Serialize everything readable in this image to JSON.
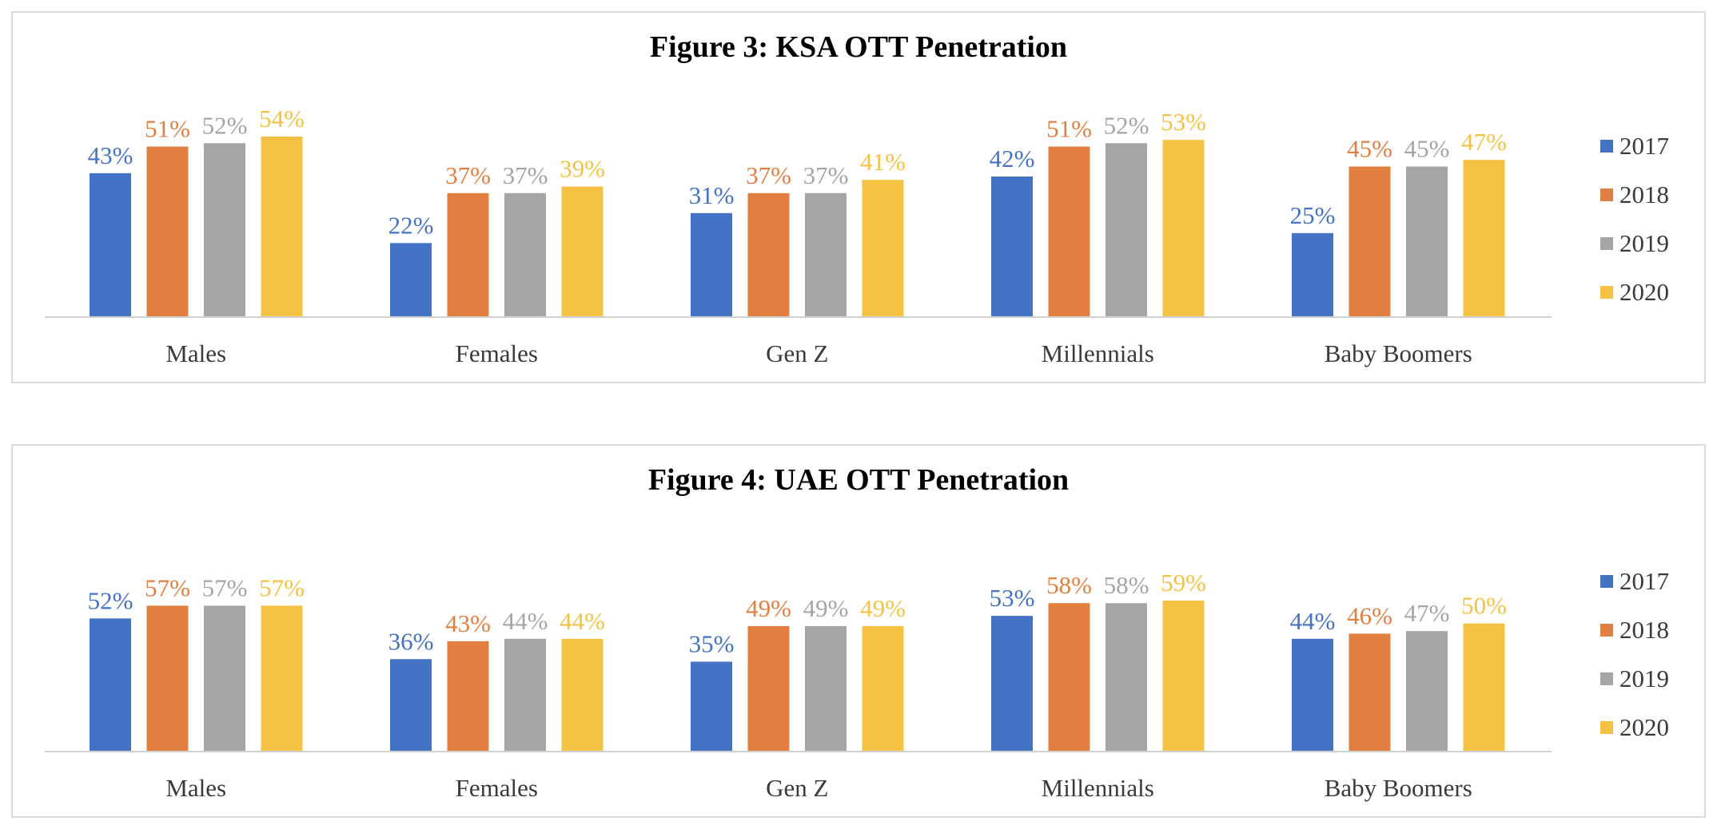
{
  "chart_data": [
    {
      "type": "bar",
      "title": "Figure 3: KSA OTT Penetration",
      "categories": [
        "Males",
        "Females",
        "Gen Z",
        "Millennials",
        "Baby Boomers"
      ],
      "series": [
        {
          "name": "2017",
          "values": [
            43,
            22,
            31,
            42,
            25
          ],
          "labels": [
            "43%",
            "22%",
            "31%",
            "42%",
            "25%"
          ]
        },
        {
          "name": "2018",
          "values": [
            51,
            37,
            37,
            51,
            45
          ],
          "labels": [
            "51%",
            "37%",
            "37%",
            "51%",
            "45%"
          ]
        },
        {
          "name": "2019",
          "values": [
            52,
            37,
            37,
            52,
            45
          ],
          "labels": [
            "52%",
            "37%",
            "37%",
            "52%",
            "45%"
          ]
        },
        {
          "name": "2020",
          "values": [
            54,
            39,
            41,
            53,
            47
          ],
          "labels": [
            "54%",
            "39%",
            "41%",
            "53%",
            "47%"
          ]
        }
      ],
      "ylim": [
        0,
        54
      ],
      "legend": "right"
    },
    {
      "type": "bar",
      "title": "Figure 4: UAE OTT Penetration",
      "categories": [
        "Males",
        "Females",
        "Gen Z",
        "Millennials",
        "Baby Boomers"
      ],
      "series": [
        {
          "name": "2017",
          "values": [
            52,
            36,
            35,
            53,
            44
          ],
          "labels": [
            "52%",
            "36%",
            "35%",
            "53%",
            "44%"
          ]
        },
        {
          "name": "2018",
          "values": [
            57,
            43,
            49,
            58,
            46
          ],
          "labels": [
            "57%",
            "43%",
            "49%",
            "58%",
            "46%"
          ]
        },
        {
          "name": "2019",
          "values": [
            57,
            44,
            49,
            58,
            47
          ],
          "labels": [
            "57%",
            "44%",
            "49%",
            "58%",
            "47%"
          ]
        },
        {
          "name": "2020",
          "values": [
            57,
            44,
            49,
            59,
            50
          ],
          "labels": [
            "57%",
            "44%",
            "49%",
            "59%",
            "50%"
          ]
        }
      ],
      "ylim": [
        0,
        59
      ],
      "legend": "right"
    }
  ],
  "colors": {
    "2017": "#4472c4",
    "2018": "#e07f3f",
    "2019": "#a5a5a5",
    "2020": "#f5c142",
    "axis": "#d0d0d0"
  }
}
